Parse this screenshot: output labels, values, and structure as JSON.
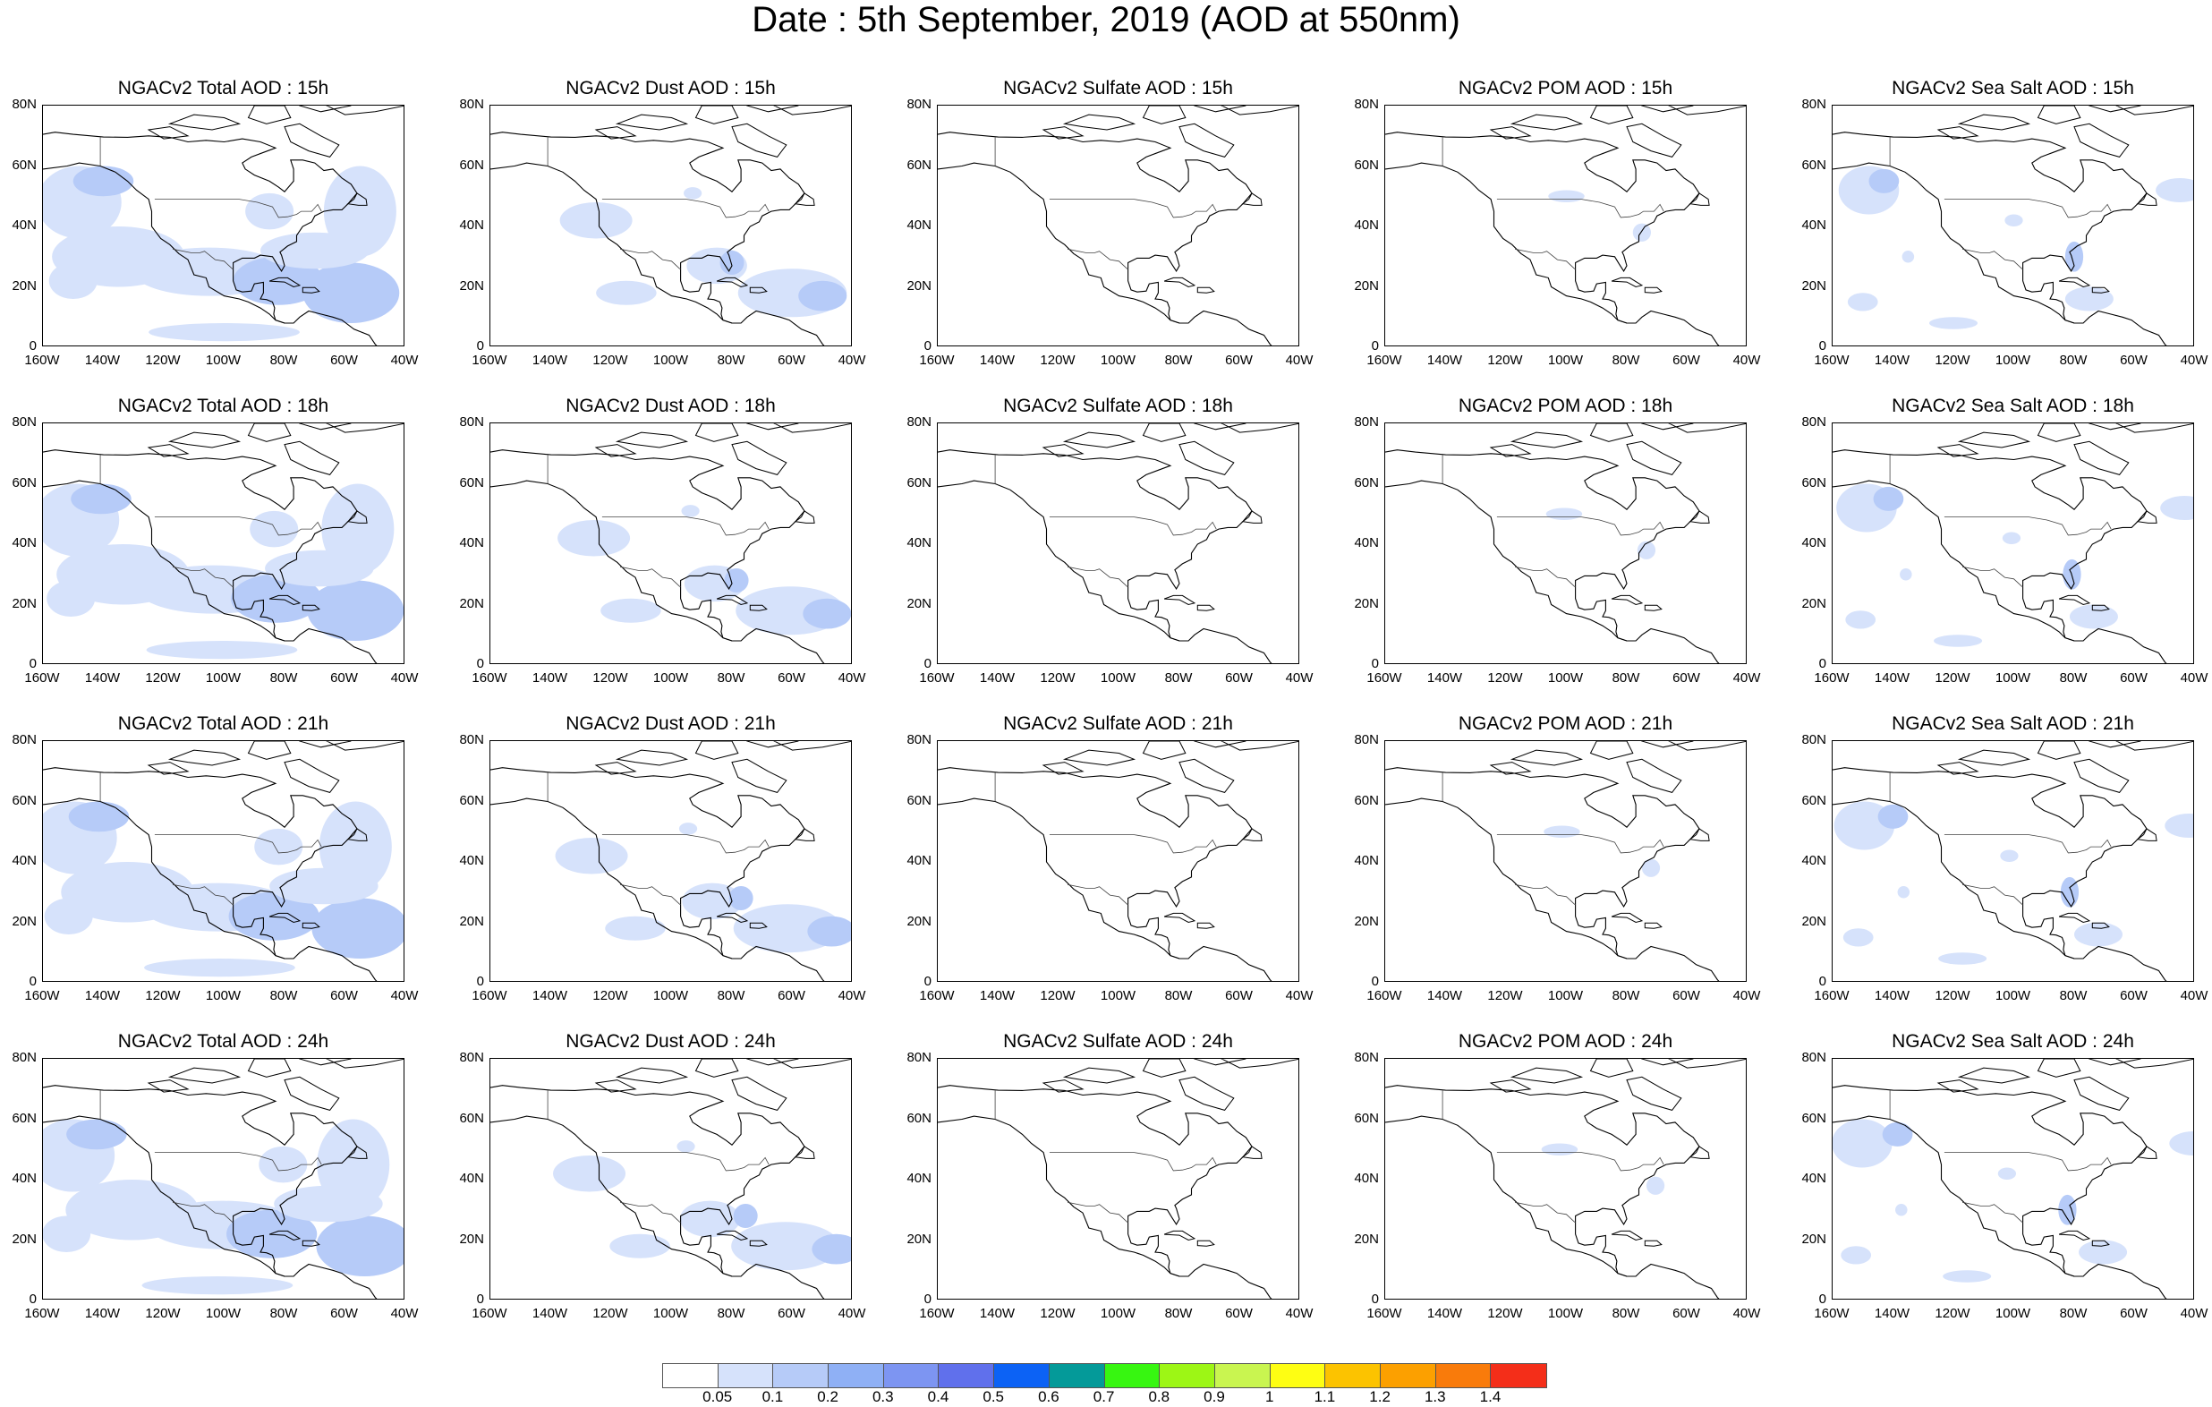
{
  "title": "Date : 5th September, 2019 (AOD at 550nm)",
  "panels": [
    [
      "NGACv2 Total AOD : 15h",
      "NGACv2 Dust AOD : 15h",
      "NGACv2 Sulfate AOD : 15h",
      "NGACv2 POM AOD : 15h",
      "NGACv2 Sea Salt AOD : 15h"
    ],
    [
      "NGACv2 Total AOD : 18h",
      "NGACv2 Dust AOD : 18h",
      "NGACv2 Sulfate AOD : 18h",
      "NGACv2 POM AOD : 18h",
      "NGACv2 Sea Salt AOD : 18h"
    ],
    [
      "NGACv2 Total AOD : 21h",
      "NGACv2 Dust AOD : 21h",
      "NGACv2 Sulfate AOD : 21h",
      "NGACv2 POM AOD : 21h",
      "NGACv2 Sea Salt AOD : 21h"
    ],
    [
      "NGACv2 Total AOD : 24h",
      "NGACv2 Dust AOD : 24h",
      "NGACv2 Sulfate AOD : 24h",
      "NGACv2 POM AOD : 24h",
      "NGACv2 Sea Salt  AOD : 24h"
    ]
  ],
  "lat_labels": [
    "80N",
    "60N",
    "40N",
    "20N",
    "0"
  ],
  "lon_labels": [
    "160W",
    "140W",
    "120W",
    "100W",
    "80W",
    "60W",
    "40W"
  ],
  "colorbar": {
    "colors": [
      "#ffffff",
      "#d6e2fb",
      "#b6cbf8",
      "#8fb0f5",
      "#7d95f2",
      "#6070ec",
      "#0c62f5",
      "#049a99",
      "#37f611",
      "#9df615",
      "#c9f550",
      "#fefe13",
      "#fcc300",
      "#fca000",
      "#f97b0b",
      "#f42e19"
    ],
    "labels": [
      "0.05",
      "0.1",
      "0.2",
      "0.3",
      "0.4",
      "0.5",
      "0.6",
      "0.7",
      "0.8",
      "0.9",
      "1",
      "1.1",
      "1.2",
      "1.3",
      "1.4"
    ]
  }
}
